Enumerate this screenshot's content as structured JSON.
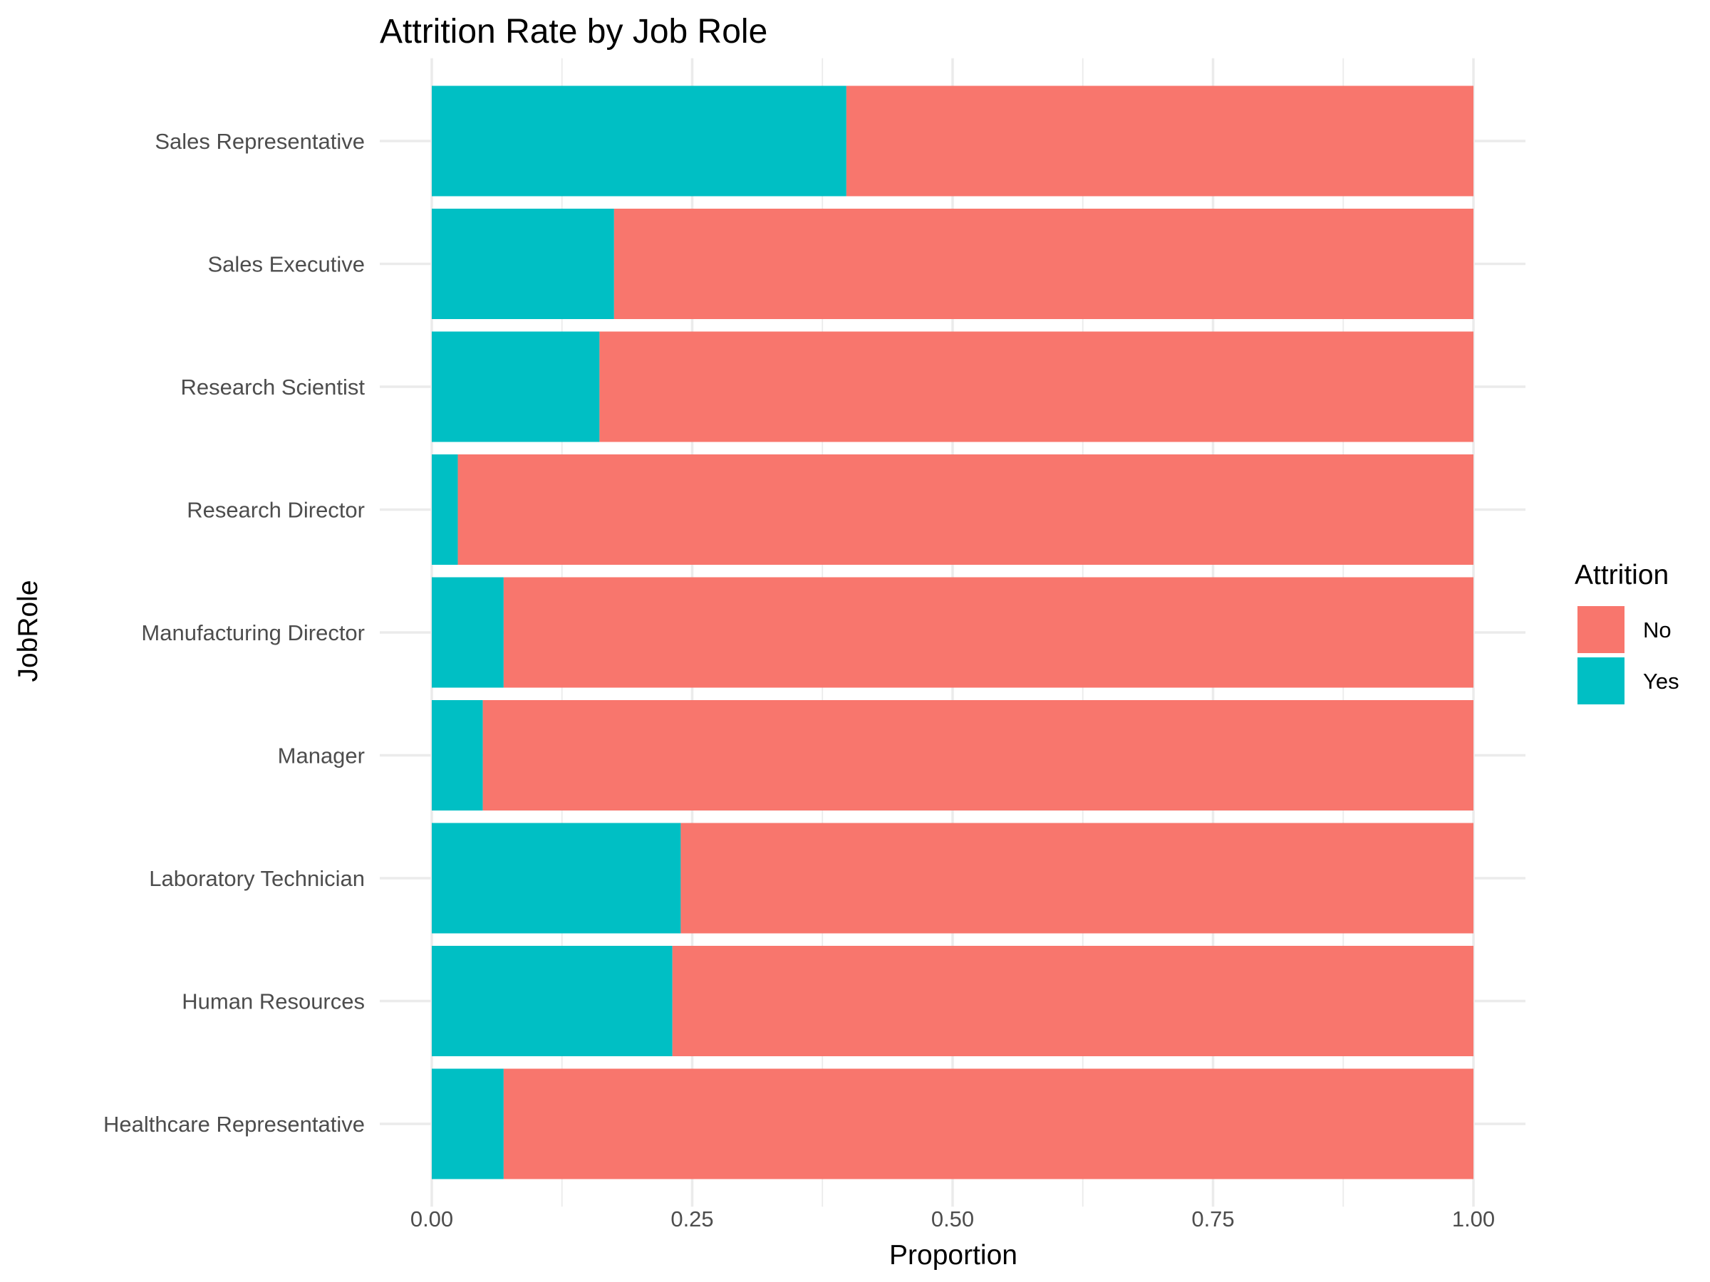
{
  "chart_data": {
    "type": "bar",
    "orientation": "horizontal",
    "stacked": true,
    "title": "Attrition Rate by Job Role",
    "xlabel": "Proportion",
    "ylabel": "JobRole",
    "xlim": [
      0,
      1
    ],
    "x_ticks": [
      "0.00",
      "0.25",
      "0.50",
      "0.75",
      "1.00"
    ],
    "grid": true,
    "legend": {
      "title": "Attrition",
      "position": "right"
    },
    "categories": [
      "Healthcare Representative",
      "Human Resources",
      "Laboratory Technician",
      "Manager",
      "Manufacturing Director",
      "Research Director",
      "Research Scientist",
      "Sales Executive",
      "Sales Representative"
    ],
    "series": [
      {
        "name": "Yes",
        "color": "#00BFC4",
        "values": [
          0.069,
          0.231,
          0.239,
          0.049,
          0.069,
          0.025,
          0.161,
          0.175,
          0.398
        ]
      },
      {
        "name": "No",
        "color": "#F8766D",
        "values": [
          0.931,
          0.769,
          0.761,
          0.951,
          0.931,
          0.975,
          0.839,
          0.825,
          0.602
        ]
      }
    ],
    "legend_order": [
      "No",
      "Yes"
    ]
  }
}
